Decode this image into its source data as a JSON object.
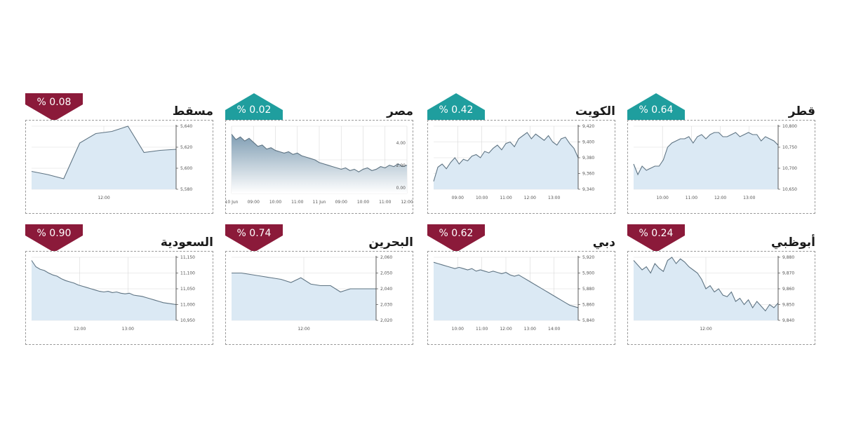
{
  "colors": {
    "down": "#8b1a3a",
    "up": "#1f9e9e",
    "line": "#5f7483",
    "fill": "#dbe9f4",
    "grid": "#d9d9d9"
  },
  "markets": [
    {
      "name": "قطر",
      "change": "% 0.64",
      "direction": "up",
      "chart_data": {
        "type": "area",
        "x": [
          0,
          6,
          12,
          18,
          24,
          30,
          36,
          42,
          48,
          54,
          60,
          66,
          72,
          78,
          84,
          90,
          96,
          102,
          108,
          114,
          120,
          126,
          132,
          138,
          144,
          150,
          156,
          162,
          168,
          174,
          180,
          186,
          192,
          198,
          204
        ],
        "values": [
          10710,
          10685,
          10705,
          10695,
          10700,
          10705,
          10705,
          10720,
          10750,
          10760,
          10765,
          10770,
          10770,
          10775,
          10760,
          10775,
          10780,
          10770,
          10780,
          10785,
          10785,
          10775,
          10775,
          10780,
          10785,
          10775,
          10780,
          10785,
          10780,
          10780,
          10765,
          10775,
          10770,
          10765,
          10755
        ],
        "y_ticks": [
          "10,800",
          "10,750",
          "10,700",
          "10,650"
        ],
        "ylim": [
          10650,
          10800
        ],
        "x_ticks": [
          "10:00",
          "11:00",
          "12:00",
          "13:00"
        ]
      }
    },
    {
      "name": "الكويت",
      "change": "% 0.42",
      "direction": "up",
      "chart_data": {
        "type": "area",
        "x": [
          0,
          6,
          12,
          18,
          24,
          30,
          36,
          42,
          48,
          54,
          60,
          66,
          72,
          78,
          84,
          90,
          96,
          102,
          108,
          114,
          120,
          126,
          132,
          138,
          144,
          150,
          156,
          162,
          168,
          174,
          180,
          186,
          192,
          198,
          204
        ],
        "values": [
          9350,
          9368,
          9372,
          9366,
          9374,
          9380,
          9372,
          9378,
          9376,
          9382,
          9384,
          9380,
          9388,
          9386,
          9392,
          9396,
          9390,
          9398,
          9400,
          9394,
          9404,
          9408,
          9412,
          9404,
          9410,
          9406,
          9402,
          9408,
          9400,
          9396,
          9404,
          9406,
          9398,
          9392,
          9380
        ],
        "y_ticks": [
          "9,420",
          "9,400",
          "9,380",
          "9,360",
          "9,340"
        ],
        "ylim": [
          9340,
          9420
        ],
        "x_ticks": [
          "09:00",
          "10:00",
          "11:00",
          "12:00",
          "13:00"
        ]
      }
    },
    {
      "name": "مصر",
      "change": "% 0.02",
      "direction": "up",
      "chart_data": {
        "type": "area",
        "x": [
          0,
          6,
          12,
          18,
          24,
          30,
          36,
          42,
          48,
          54,
          60,
          66,
          72,
          78,
          84,
          90,
          96,
          102,
          108,
          114,
          120,
          126,
          132,
          138,
          144,
          150,
          156,
          162,
          168,
          174,
          180,
          186,
          192,
          198,
          204,
          210,
          216,
          222,
          228,
          234,
          240
        ],
        "values": [
          88,
          80,
          84,
          78,
          82,
          76,
          70,
          72,
          66,
          68,
          64,
          62,
          60,
          62,
          58,
          60,
          56,
          54,
          52,
          50,
          46,
          44,
          42,
          40,
          38,
          36,
          38,
          34,
          36,
          32,
          36,
          38,
          34,
          36,
          40,
          38,
          42,
          40,
          44,
          40,
          42
        ],
        "y_ticks": [
          "4.00",
          "2.00",
          "0.00"
        ],
        "ylim": [
          0,
          100
        ],
        "x_ticks": [
          "10 Jun",
          "09:00",
          "10:00",
          "11:00",
          "11 Jun",
          "09:00",
          "10:00",
          "11:00",
          "12:00"
        ]
      }
    },
    {
      "name": "مسقط",
      "change": "% 0.08",
      "direction": "down",
      "chart_data": {
        "type": "area",
        "x": [
          0,
          20,
          40,
          60,
          80,
          100,
          120,
          140,
          160,
          180
        ],
        "values": [
          5597,
          5594,
          5590,
          5624,
          5633,
          5635,
          5640,
          5615,
          5617,
          5618
        ],
        "y_ticks": [
          "5,640",
          "5,620",
          "5,600",
          "5,580"
        ],
        "ylim": [
          5580,
          5640
        ],
        "x_ticks": [
          "12:00"
        ]
      }
    },
    {
      "name": "أبوظبي",
      "change": "% 0.24",
      "direction": "down",
      "chart_data": {
        "type": "area",
        "x": [
          0,
          6,
          12,
          18,
          24,
          30,
          36,
          42,
          48,
          54,
          60,
          66,
          72,
          78,
          84,
          90,
          96,
          102,
          108,
          114,
          120,
          126,
          132,
          138,
          144,
          150,
          156,
          162,
          168,
          174,
          180,
          186,
          192,
          198,
          204
        ],
        "values": [
          9878,
          9875,
          9872,
          9874,
          9870,
          9876,
          9873,
          9871,
          9878,
          9880,
          9876,
          9879,
          9877,
          9874,
          9872,
          9870,
          9866,
          9860,
          9862,
          9858,
          9860,
          9856,
          9855,
          9858,
          9852,
          9854,
          9850,
          9853,
          9848,
          9852,
          9849,
          9846,
          9850,
          9848,
          9851
        ],
        "y_ticks": [
          "9,880",
          "9,870",
          "9,860",
          "9,850",
          "9,840"
        ],
        "ylim": [
          9840,
          9880
        ],
        "x_ticks": [
          "12:00"
        ]
      }
    },
    {
      "name": "دبي",
      "change": "% 0.62",
      "direction": "down",
      "chart_data": {
        "type": "area",
        "x": [
          0,
          6,
          12,
          18,
          24,
          30,
          36,
          42,
          48,
          54,
          60,
          66,
          72,
          78,
          84,
          90,
          96,
          102,
          108,
          114,
          120,
          126,
          132,
          138,
          144,
          150,
          156,
          162,
          168,
          174,
          180,
          186,
          192,
          198,
          204
        ],
        "values": [
          5932,
          5930,
          5928,
          5926,
          5924,
          5922,
          5924,
          5922,
          5920,
          5922,
          5918,
          5920,
          5918,
          5916,
          5918,
          5916,
          5914,
          5916,
          5912,
          5910,
          5912,
          5908,
          5904,
          5900,
          5896,
          5892,
          5888,
          5884,
          5880,
          5876,
          5872,
          5868,
          5864,
          5862,
          5860
        ],
        "y_ticks": [
          "5,920",
          "5,900",
          "5,880",
          "5,860",
          "5,840"
        ],
        "ylim": [
          5840,
          5940
        ],
        "x_ticks": [
          "10:00",
          "11:00",
          "12:00",
          "13:00",
          "14:00"
        ]
      }
    },
    {
      "name": "البحرين",
      "change": "% 0.74",
      "direction": "down",
      "chart_data": {
        "type": "area",
        "x": [
          0,
          15,
          30,
          45,
          60,
          75,
          90,
          105,
          120,
          135,
          150,
          165,
          180,
          195,
          210,
          219
        ],
        "values": [
          2050,
          2050,
          2049,
          2048,
          2047,
          2046,
          2044,
          2047,
          2043,
          2042,
          2042,
          2038,
          2040,
          2040,
          2040,
          2040
        ],
        "y_ticks": [
          "2,060",
          "2,050",
          "2,040",
          "2,030",
          "2,020"
        ],
        "ylim": [
          2020,
          2060
        ],
        "x_ticks": [
          "12:00"
        ]
      }
    },
    {
      "name": "السعودية",
      "change": "% 0.90",
      "direction": "down",
      "chart_data": {
        "type": "area",
        "x": [
          0,
          6,
          12,
          18,
          24,
          30,
          36,
          42,
          48,
          54,
          60,
          66,
          72,
          78,
          84,
          90,
          96,
          102,
          108,
          114,
          120,
          126,
          132,
          138,
          144,
          150,
          156,
          162,
          168,
          174,
          180,
          186,
          192,
          198,
          204
        ],
        "values": [
          11140,
          11120,
          11112,
          11108,
          11100,
          11094,
          11090,
          11082,
          11076,
          11072,
          11068,
          11062,
          11058,
          11054,
          11050,
          11046,
          11042,
          11040,
          11042,
          11038,
          11040,
          11036,
          11034,
          11036,
          11030,
          11028,
          11026,
          11022,
          11018,
          11014,
          11010,
          11006,
          11004,
          11002,
          11000
        ],
        "y_ticks": [
          "11,150",
          "11,100",
          "11,050",
          "11,000",
          "10,950"
        ],
        "ylim": [
          10950,
          11150
        ],
        "x_ticks": [
          "12:00",
          "13:00"
        ]
      }
    }
  ]
}
